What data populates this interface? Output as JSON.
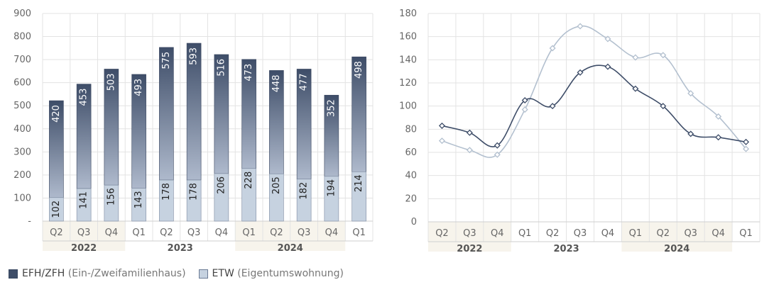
{
  "colors": {
    "efh_dark": "#3e4d68",
    "efh_light": "#aeb9cc",
    "etw_fill": "#c6d2e0",
    "line_efh": "#3e4d68",
    "line_etw": "#b3c0cf",
    "grid": "#e3e3e3",
    "band": "#f7f4ec",
    "axis_text": "#666666"
  },
  "legend": {
    "efh_label": "EFH/ZFH",
    "efh_desc": "(Ein-/Zweifamilienhaus)",
    "etw_label": "ETW",
    "etw_desc": "(Eigentumswohnung)"
  },
  "chart_data": [
    {
      "type": "bar",
      "stacked": true,
      "categories": [
        "Q2",
        "Q3",
        "Q4",
        "Q1",
        "Q2",
        "Q3",
        "Q4",
        "Q1",
        "Q2",
        "Q3",
        "Q4",
        "Q1"
      ],
      "years": [
        {
          "label": "2022",
          "start": 0,
          "end": 2
        },
        {
          "label": "2023",
          "start": 3,
          "end": 6
        },
        {
          "label": "2024",
          "start": 7,
          "end": 10
        }
      ],
      "series": [
        {
          "name": "ETW",
          "values": [
            102,
            141,
            156,
            143,
            178,
            178,
            206,
            228,
            205,
            182,
            194,
            214
          ]
        },
        {
          "name": "EFH/ZFH",
          "values": [
            420,
            453,
            503,
            493,
            575,
            593,
            516,
            473,
            448,
            477,
            352,
            498
          ]
        }
      ],
      "ylim": [
        0,
        900
      ],
      "yticks": [
        0,
        100,
        200,
        300,
        400,
        500,
        600,
        700,
        800,
        900
      ],
      "ytick_labels": [
        "-",
        "100",
        "200",
        "300",
        "400",
        "500",
        "600",
        "700",
        "800",
        "900"
      ],
      "grid": true
    },
    {
      "type": "line",
      "categories": [
        "Q2",
        "Q3",
        "Q4",
        "Q1",
        "Q2",
        "Q3",
        "Q4",
        "Q1",
        "Q2",
        "Q3",
        "Q4",
        "Q1"
      ],
      "years": [
        {
          "label": "2022",
          "start": 0,
          "end": 2
        },
        {
          "label": "2023",
          "start": 3,
          "end": 6
        },
        {
          "label": "2024",
          "start": 7,
          "end": 10
        }
      ],
      "series": [
        {
          "name": "EFH/ZFH",
          "values": [
            83,
            77,
            66,
            105,
            100,
            129,
            134,
            115,
            100,
            76,
            73,
            69
          ]
        },
        {
          "name": "ETW",
          "values": [
            70,
            62,
            58,
            97,
            150,
            169,
            158,
            142,
            144,
            111,
            91,
            63
          ]
        }
      ],
      "ylim": [
        0,
        180
      ],
      "yticks": [
        0,
        20,
        40,
        60,
        80,
        100,
        120,
        140,
        160,
        180
      ],
      "ytick_labels": [
        "0",
        "20",
        "40",
        "60",
        "80",
        "100",
        "120",
        "140",
        "160",
        "180"
      ],
      "grid": true
    }
  ]
}
